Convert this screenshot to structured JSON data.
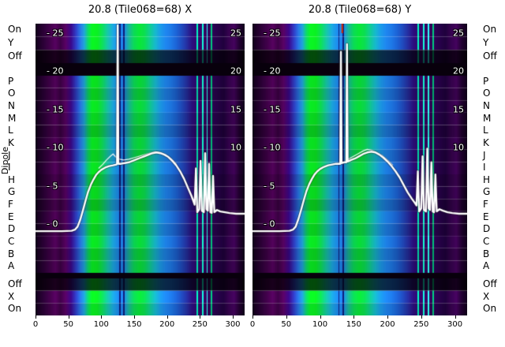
{
  "figure": {
    "background": "#ffffff"
  },
  "axis": {
    "title": "Dipole"
  },
  "chart_data": {
    "type": "heatmap",
    "layout": "two side-by-side spectrogram panels with shared dipole-row axis labels on both outer edges, white amplitude line overlaid on each panel, legend off, grid off",
    "x_range": [
      0,
      318
    ],
    "x_ticks": [
      0,
      50,
      100,
      150,
      200,
      250,
      300
    ],
    "y_ticks_inner": [
      25,
      20,
      15,
      10,
      5,
      0
    ],
    "y_ticks_right_edge": [
      25,
      20,
      15,
      10
    ],
    "dipole_rows_top_to_bottom": [
      "On",
      "Y",
      "Off",
      "P",
      "O",
      "N",
      "M",
      "L",
      "K",
      "J",
      "I",
      "H",
      "G",
      "F",
      "E",
      "D",
      "C",
      "B",
      "A",
      "Off",
      "X",
      "On"
    ],
    "row_bands": [
      {
        "label": "On",
        "band": "top",
        "brightness": 1.15
      },
      {
        "label": "Y",
        "band": "top",
        "brightness": 1.15
      },
      {
        "label": "Off",
        "band": "top",
        "brightness": 0.35
      },
      {
        "label": "P",
        "band": "main",
        "brightness": 1.06
      },
      {
        "label": "O",
        "band": "main",
        "brightness": 0.95
      },
      {
        "label": "N",
        "band": "main",
        "brightness": 1.1
      },
      {
        "label": "M",
        "band": "main",
        "brightness": 1.0
      },
      {
        "label": "L",
        "band": "main",
        "brightness": 0.9
      },
      {
        "label": "K",
        "band": "main",
        "brightness": 1.05
      },
      {
        "label": "J",
        "band": "main",
        "brightness": 0.97
      },
      {
        "label": "I",
        "band": "main",
        "brightness": 1.08
      },
      {
        "label": "H",
        "band": "main",
        "brightness": 0.92
      },
      {
        "label": "G",
        "band": "main",
        "brightness": 1.02
      },
      {
        "label": "F",
        "band": "main",
        "brightness": 0.88
      },
      {
        "label": "E",
        "band": "main",
        "brightness": 1.06
      },
      {
        "label": "D",
        "band": "main",
        "brightness": 0.96
      },
      {
        "label": "C",
        "band": "main",
        "brightness": 1.1
      },
      {
        "label": "B",
        "band": "main",
        "brightness": 0.94
      },
      {
        "label": "A",
        "band": "main",
        "brightness": 1.0
      },
      {
        "label": "Off",
        "band": "bottom",
        "brightness": 0.35
      },
      {
        "label": "X",
        "band": "bottom",
        "brightness": 1.2
      },
      {
        "label": "On",
        "band": "bottom",
        "brightness": 1.05
      }
    ],
    "column_color_stops": [
      [
        0,
        "#100018"
      ],
      [
        14,
        "#2a0134"
      ],
      [
        22,
        "#3a0142"
      ],
      [
        30,
        "#4c0254"
      ],
      [
        38,
        "#36013e"
      ],
      [
        46,
        "#4e0258"
      ],
      [
        54,
        "#33077a"
      ],
      [
        62,
        "#2a3ab2"
      ],
      [
        68,
        "#2468ca"
      ],
      [
        74,
        "#1c90c0"
      ],
      [
        80,
        "#0cc05a"
      ],
      [
        86,
        "#08d81e"
      ],
      [
        94,
        "#0ad21e"
      ],
      [
        102,
        "#0cc452"
      ],
      [
        110,
        "#14ae96"
      ],
      [
        118,
        "#1894c6"
      ],
      [
        126,
        "#1a7ad2"
      ],
      [
        134,
        "#1b74d0"
      ],
      [
        142,
        "#16a086"
      ],
      [
        150,
        "#0ac04a"
      ],
      [
        158,
        "#08ca30"
      ],
      [
        166,
        "#0ac246"
      ],
      [
        174,
        "#0eb480"
      ],
      [
        182,
        "#14a2b2"
      ],
      [
        190,
        "#1888cc"
      ],
      [
        198,
        "#1b76d2"
      ],
      [
        206,
        "#1a6aca"
      ],
      [
        214,
        "#1958bc"
      ],
      [
        222,
        "#1c42a6"
      ],
      [
        230,
        "#212a8e"
      ],
      [
        238,
        "#260e70"
      ],
      [
        246,
        "#2d0660"
      ],
      [
        254,
        "#340258"
      ],
      [
        262,
        "#2e0250"
      ],
      [
        270,
        "#28024a"
      ],
      [
        278,
        "#220140"
      ],
      [
        286,
        "#1c0136"
      ],
      [
        294,
        "#300246"
      ],
      [
        302,
        "#3c0352"
      ],
      [
        310,
        "#1e012c"
      ],
      [
        318,
        "#0f0018"
      ]
    ],
    "bright_vlines": [
      [
        246,
        "#00d8a8"
      ],
      [
        254,
        "#10e8c0"
      ],
      [
        261,
        "#28f0e0"
      ],
      [
        268,
        "#00b070"
      ]
    ],
    "dark_vlines": [
      [
        128,
        "#0c1868"
      ],
      [
        134,
        "#0c1868"
      ]
    ],
    "gap_color": "#08000c",
    "line_color": "#ffffff",
    "panels": [
      {
        "title": "20.8 (Tile068=68) X",
        "top_marker": null,
        "main_line": [
          [
            0,
            0.3
          ],
          [
            40,
            0.3
          ],
          [
            55,
            0.35
          ],
          [
            60,
            0.5
          ],
          [
            64,
            0.9
          ],
          [
            68,
            1.8
          ],
          [
            72,
            3.0
          ],
          [
            76,
            4.3
          ],
          [
            80,
            5.5
          ],
          [
            84,
            6.4
          ],
          [
            88,
            7.1
          ],
          [
            92,
            7.7
          ],
          [
            96,
            8.1
          ],
          [
            100,
            8.4
          ],
          [
            106,
            8.7
          ],
          [
            112,
            8.9
          ],
          [
            118,
            9.0
          ],
          [
            123,
            9.1
          ],
          [
            124,
            9.2
          ],
          [
            125,
            27.5
          ],
          [
            126,
            9.2
          ],
          [
            130,
            9.2
          ],
          [
            136,
            9.3
          ],
          [
            142,
            9.4
          ],
          [
            148,
            9.6
          ],
          [
            154,
            9.8
          ],
          [
            160,
            10.0
          ],
          [
            166,
            10.2
          ],
          [
            172,
            10.4
          ],
          [
            178,
            10.6
          ],
          [
            184,
            10.7
          ],
          [
            190,
            10.6
          ],
          [
            196,
            10.4
          ],
          [
            202,
            10.1
          ],
          [
            208,
            9.6
          ],
          [
            214,
            9.0
          ],
          [
            220,
            8.2
          ],
          [
            226,
            7.2
          ],
          [
            232,
            6.0
          ],
          [
            237,
            5.0
          ],
          [
            240,
            4.3
          ],
          [
            242,
            3.8
          ],
          [
            244,
            8.6
          ],
          [
            246,
            2.8
          ],
          [
            249,
            3.2
          ],
          [
            251,
            9.6
          ],
          [
            253,
            3.0
          ],
          [
            256,
            2.8
          ],
          [
            258,
            10.6
          ],
          [
            260,
            3.2
          ],
          [
            262,
            3.0
          ],
          [
            264,
            9.2
          ],
          [
            266,
            2.8
          ],
          [
            268,
            2.7
          ],
          [
            270,
            7.6
          ],
          [
            272,
            2.8
          ],
          [
            276,
            3.1
          ],
          [
            281,
            2.9
          ],
          [
            288,
            2.8
          ],
          [
            295,
            2.7
          ],
          [
            305,
            2.6
          ],
          [
            318,
            2.6
          ]
        ],
        "secondary_line": [
          [
            96,
            8.6
          ],
          [
            102,
            9.1
          ],
          [
            108,
            9.7
          ],
          [
            114,
            10.2
          ],
          [
            118,
            10.5
          ],
          [
            122,
            10.1
          ],
          [
            128,
            9.8
          ],
          [
            134,
            9.7
          ],
          [
            142,
            9.8
          ],
          [
            150,
            10.0
          ],
          [
            158,
            10.2
          ],
          [
            166,
            10.4
          ],
          [
            174,
            10.6
          ],
          [
            182,
            10.8
          ],
          [
            190,
            10.7
          ],
          [
            198,
            10.4
          ],
          [
            206,
            9.9
          ],
          [
            214,
            9.2
          ]
        ]
      },
      {
        "title": "20.8 (Tile068=68) Y",
        "top_marker": {
          "x": 133,
          "color": "#d42c00"
        },
        "main_line": [
          [
            0,
            0.3
          ],
          [
            40,
            0.3
          ],
          [
            55,
            0.35
          ],
          [
            60,
            0.5
          ],
          [
            64,
            0.9
          ],
          [
            68,
            1.9
          ],
          [
            72,
            3.1
          ],
          [
            76,
            4.4
          ],
          [
            80,
            5.6
          ],
          [
            84,
            6.5
          ],
          [
            88,
            7.2
          ],
          [
            92,
            7.8
          ],
          [
            96,
            8.2
          ],
          [
            100,
            8.5
          ],
          [
            106,
            8.8
          ],
          [
            112,
            9.0
          ],
          [
            118,
            9.1
          ],
          [
            124,
            9.2
          ],
          [
            130,
            9.2
          ],
          [
            131,
            24.0
          ],
          [
            132,
            9.3
          ],
          [
            136,
            9.4
          ],
          [
            139,
            9.4
          ],
          [
            140,
            25.0
          ],
          [
            141,
            9.5
          ],
          [
            146,
            9.7
          ],
          [
            152,
            9.9
          ],
          [
            158,
            10.2
          ],
          [
            164,
            10.5
          ],
          [
            170,
            10.7
          ],
          [
            176,
            10.8
          ],
          [
            182,
            10.7
          ],
          [
            188,
            10.4
          ],
          [
            194,
            10.0
          ],
          [
            200,
            9.5
          ],
          [
            206,
            8.9
          ],
          [
            212,
            8.2
          ],
          [
            218,
            7.4
          ],
          [
            224,
            6.4
          ],
          [
            230,
            5.4
          ],
          [
            236,
            4.6
          ],
          [
            240,
            4.1
          ],
          [
            243,
            3.7
          ],
          [
            245,
            8.2
          ],
          [
            247,
            2.9
          ],
          [
            250,
            3.3
          ],
          [
            252,
            10.2
          ],
          [
            254,
            3.1
          ],
          [
            257,
            2.9
          ],
          [
            259,
            11.2
          ],
          [
            261,
            3.3
          ],
          [
            263,
            3.1
          ],
          [
            265,
            9.4
          ],
          [
            267,
            2.9
          ],
          [
            269,
            2.8
          ],
          [
            271,
            7.8
          ],
          [
            273,
            2.9
          ],
          [
            277,
            3.2
          ],
          [
            282,
            3.0
          ],
          [
            289,
            2.8
          ],
          [
            296,
            2.7
          ],
          [
            306,
            2.6
          ],
          [
            318,
            2.6
          ]
        ],
        "secondary_line": [
          [
            140,
            9.7
          ],
          [
            148,
            10.1
          ],
          [
            156,
            10.5
          ],
          [
            164,
            10.9
          ],
          [
            170,
            11.1
          ],
          [
            176,
            11.0
          ],
          [
            184,
            10.7
          ],
          [
            192,
            10.3
          ],
          [
            200,
            9.7
          ],
          [
            208,
            9.0
          ]
        ]
      }
    ]
  }
}
